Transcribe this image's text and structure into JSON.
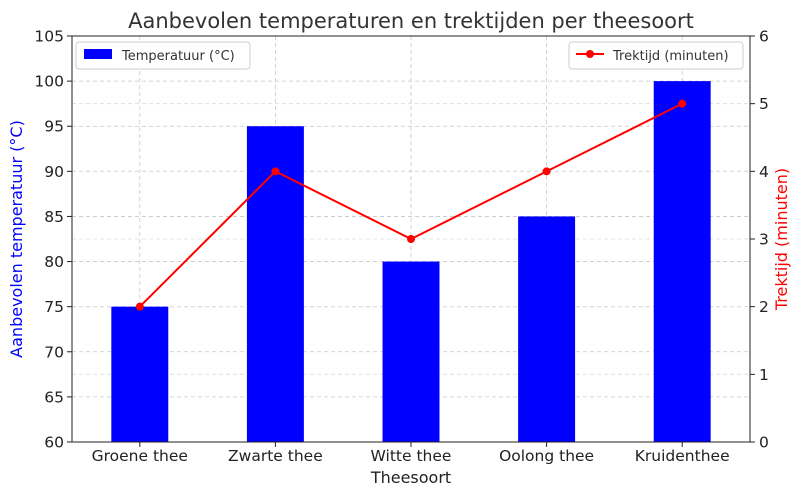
{
  "chart_data": {
    "type": "bar+line",
    "title": "Aanbevolen temperaturen en trektijden per theesoort",
    "xlabel": "Theesoort",
    "categories": [
      "Groene thee",
      "Zwarte thee",
      "Witte thee",
      "Oolong thee",
      "Kruidenthee"
    ],
    "series": [
      {
        "name": "Temperatuur (°C)",
        "type": "bar",
        "axis": "left",
        "color": "#0000ff",
        "values": [
          75,
          95,
          80,
          85,
          100
        ]
      },
      {
        "name": "Trektijd (minuten)",
        "type": "line",
        "axis": "right",
        "color": "#ff0000",
        "values": [
          2,
          4,
          3,
          4,
          5
        ]
      }
    ],
    "y_left": {
      "label": "Aanbevolen temperatuur (°C)",
      "label_color": "#0000ff",
      "ylim": [
        60,
        105
      ],
      "ticks": [
        60,
        65,
        70,
        75,
        80,
        85,
        90,
        95,
        100,
        105
      ]
    },
    "y_right": {
      "label": "Trektijd (minuten)",
      "label_color": "#ff0000",
      "ylim": [
        0,
        6
      ],
      "ticks": [
        0,
        1,
        2,
        3,
        4,
        5,
        6
      ]
    },
    "grid": true,
    "legends": {
      "bar": "top-left",
      "line": "top-right"
    }
  }
}
